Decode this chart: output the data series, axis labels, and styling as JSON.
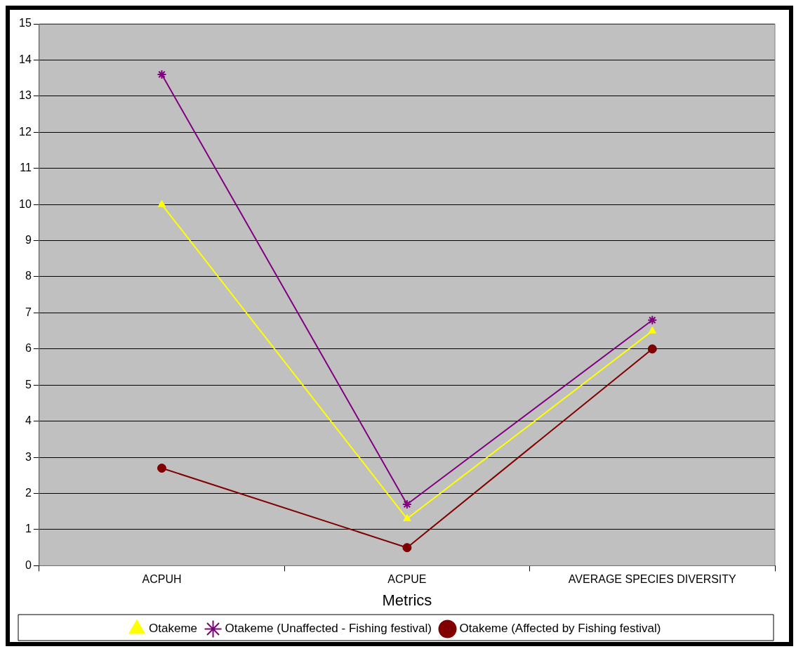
{
  "chart_data": {
    "type": "line",
    "xlabel": "Metrics",
    "categories": [
      "ACPUH",
      "ACPUE",
      "AVERAGE SPECIES DIVERSITY"
    ],
    "series": [
      {
        "name": "Otakeme",
        "color": "#ffff00",
        "marker": "triangle",
        "values": [
          10,
          1.3,
          6.5
        ]
      },
      {
        "name": "Otakeme (Unaffected - Fishing festival)",
        "color": "#800080",
        "marker": "cross",
        "values": [
          13.6,
          1.7,
          6.8
        ]
      },
      {
        "name": "Otakeme (Affected by Fishing festival)",
        "color": "#800000",
        "marker": "circle",
        "values": [
          2.7,
          0.5,
          6.0
        ]
      }
    ],
    "ylim": [
      0,
      15
    ],
    "yticks": [
      0,
      1,
      2,
      3,
      4,
      5,
      6,
      7,
      8,
      9,
      10,
      11,
      12,
      13,
      14,
      15
    ],
    "grid": "y",
    "legend": "bottom",
    "line_style": "solid"
  }
}
